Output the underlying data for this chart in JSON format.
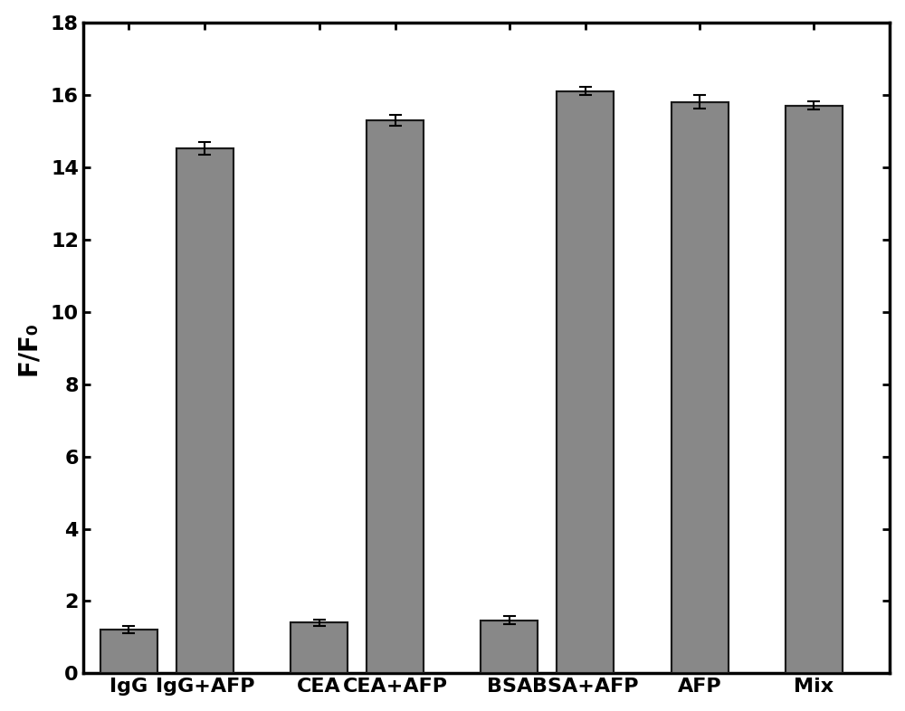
{
  "categories": [
    "IgG",
    "IgG+AFP",
    "CEA",
    "CEA+AFP",
    "BSA",
    "BSA+AFP",
    "AFP",
    "Mix"
  ],
  "values": [
    1.22,
    14.52,
    1.4,
    15.3,
    1.47,
    16.1,
    15.8,
    15.7
  ],
  "errors": [
    0.1,
    0.18,
    0.08,
    0.15,
    0.12,
    0.12,
    0.18,
    0.12
  ],
  "bar_color_face": "#888888",
  "bar_color_edge": "#1a1a1a",
  "ylabel": "F/F₀",
  "ylim": [
    0,
    18
  ],
  "yticks": [
    0,
    2,
    4,
    6,
    8,
    10,
    12,
    14,
    16,
    18
  ],
  "background_color": "#ffffff",
  "ylabel_fontsize": 20,
  "tick_fontsize": 16,
  "xlabel_fontsize": 16,
  "bar_width": 0.75,
  "group_positions": [
    0.5,
    1.5,
    3.0,
    4.0,
    5.5,
    6.5,
    8.0,
    9.5
  ],
  "xlim": [
    -0.1,
    10.5
  ]
}
